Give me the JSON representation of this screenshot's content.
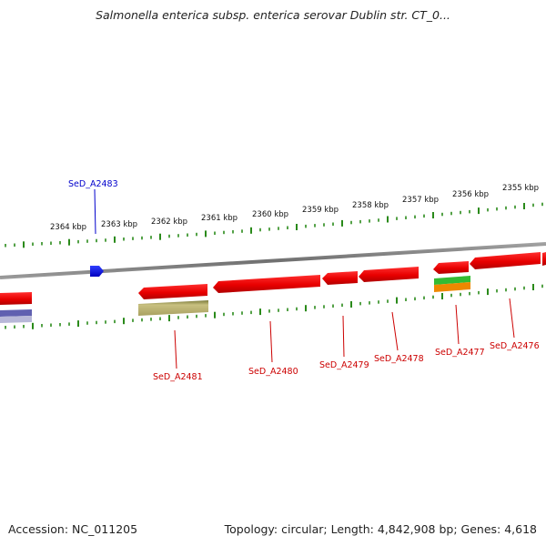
{
  "header": {
    "title": "Salmonella enterica subsp. enterica serovar Dublin str. CT_0..."
  },
  "footer": {
    "accession": "Accession: NC_011205",
    "summary": "Topology: circular; Length: 4,842,908 bp; Genes: 4,618"
  },
  "colors": {
    "backbone": "#808080",
    "tick": "#2a8a1a",
    "gene_forward": "#1010ff",
    "gene_reverse": "#ff0000",
    "label_forward": "#0000cc",
    "label_reverse": "#cc0000",
    "feature_olive": "#a8a060",
    "feature_green": "#33bb33",
    "feature_orange": "#ee8800",
    "feature_purple": "#6060b0"
  },
  "scale_labels": [
    "2364 kbp",
    "2363 kbp",
    "2362 kbp",
    "2361 kbp",
    "2360 kbp",
    "2359 kbp",
    "2358 kbp",
    "2357 kbp",
    "2356 kbp",
    "2355 kbp"
  ],
  "genes": [
    {
      "id": "SeD_A2483",
      "strand": "forward"
    },
    {
      "id": "SeD_A2481",
      "strand": "reverse"
    },
    {
      "id": "SeD_A2480",
      "strand": "reverse"
    },
    {
      "id": "SeD_A2479",
      "strand": "reverse"
    },
    {
      "id": "SeD_A2478",
      "strand": "reverse"
    },
    {
      "id": "SeD_A2477",
      "strand": "reverse"
    },
    {
      "id": "SeD_A2476",
      "strand": "reverse"
    }
  ]
}
